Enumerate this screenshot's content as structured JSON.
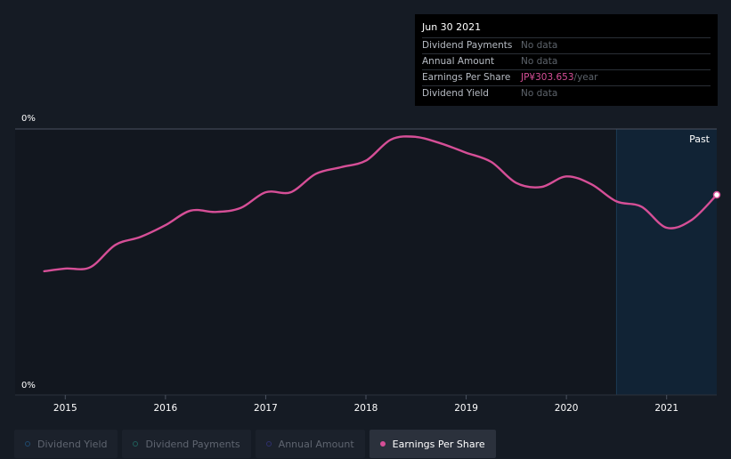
{
  "tooltip": {
    "date": "Jun 30 2021",
    "rows": [
      {
        "label": "Dividend Payments",
        "value": "No data"
      },
      {
        "label": "Annual Amount",
        "value": "No data"
      },
      {
        "label": "Earnings Per Share",
        "value": "JP¥303.653",
        "suffix": "/year"
      },
      {
        "label": "Dividend Yield",
        "value": "No data"
      }
    ]
  },
  "legend": [
    {
      "label": "Dividend Yield",
      "color": "#1f4a6e",
      "active": false
    },
    {
      "label": "Dividend Payments",
      "color": "#1f5f5b",
      "active": false
    },
    {
      "label": "Annual Amount",
      "color": "#2e2f6e",
      "active": false
    },
    {
      "label": "Earnings Per Share",
      "color": "#d64f97",
      "active": true
    }
  ],
  "chart_data": {
    "type": "line",
    "y_tick_labels": {
      "top": "0%",
      "bottom": "0%"
    },
    "x_ticks": [
      "2015",
      "2016",
      "2017",
      "2018",
      "2019",
      "2020",
      "2021"
    ],
    "region_label": "Past",
    "past_region_start": 2020.5,
    "xlim": [
      2014.5,
      2021.5
    ],
    "ylim": [
      0,
      1
    ],
    "series": [
      {
        "name": "Earnings Per Share",
        "color": "#d64f97",
        "x": [
          2014.79,
          2015.0,
          2015.25,
          2015.5,
          2015.75,
          2016.0,
          2016.25,
          2016.5,
          2016.75,
          2017.0,
          2017.25,
          2017.5,
          2017.75,
          2018.0,
          2018.25,
          2018.5,
          2018.75,
          2019.0,
          2019.25,
          2019.5,
          2019.75,
          2020.0,
          2020.25,
          2020.5,
          2020.75,
          2021.0,
          2021.25,
          2021.5
        ],
        "y": [
          0.47,
          0.48,
          0.485,
          0.57,
          0.6,
          0.645,
          0.7,
          0.695,
          0.71,
          0.77,
          0.77,
          0.84,
          0.865,
          0.89,
          0.97,
          0.98,
          0.955,
          0.92,
          0.885,
          0.805,
          0.79,
          0.83,
          0.8,
          0.735,
          0.715,
          0.635,
          0.665,
          0.76
        ]
      }
    ]
  }
}
